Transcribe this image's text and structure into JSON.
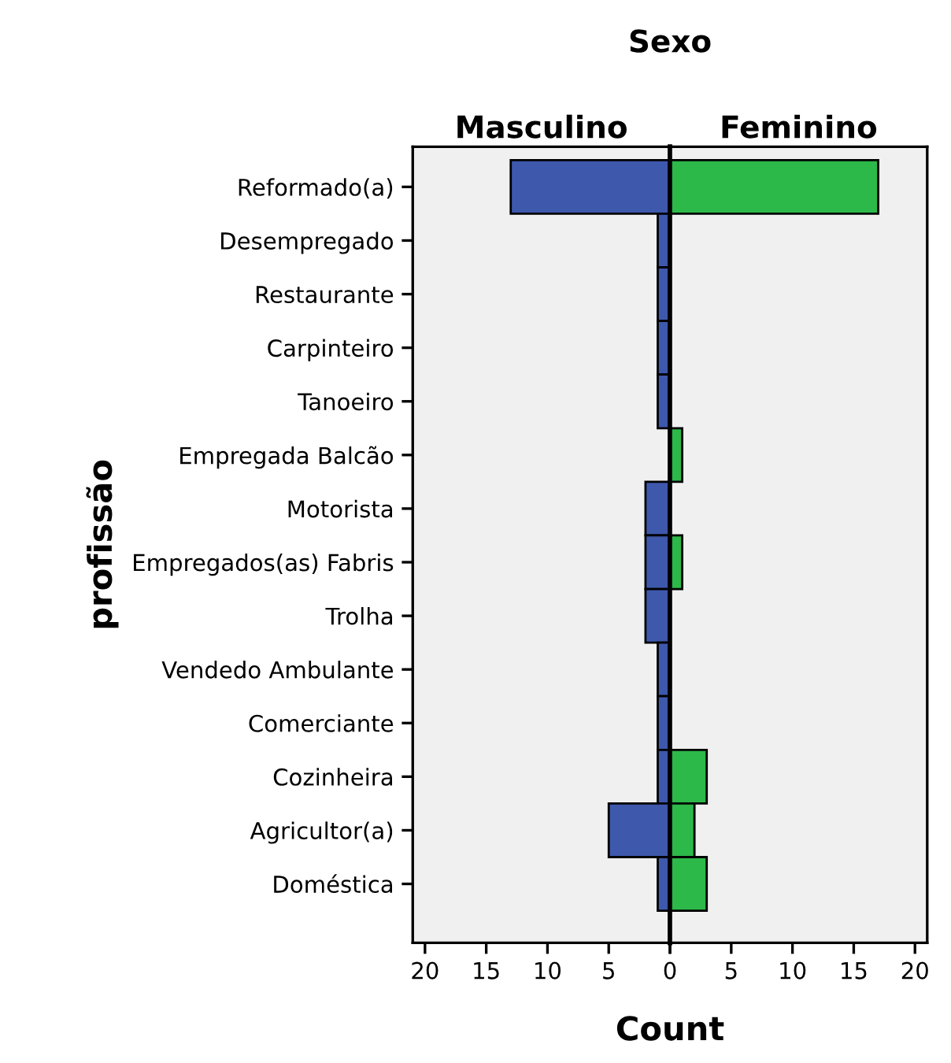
{
  "chart_data": [
    {
      "type": "bar",
      "orientation": "horizontal",
      "title": "Masculino",
      "annotations": [
        "Sexo"
      ],
      "xlabel": "Count",
      "ylabel": "profissão",
      "categories": [
        "Reformado(a)",
        "Desempregado",
        "Restaurante",
        "Carpinteiro",
        "Tanoeiro",
        "Empregada Balcão",
        "Motorista",
        "Empregados(as) Fabris",
        "Trolha",
        "Vendedo Ambulante",
        "Comerciante",
        "Cozinheira",
        "Agricultor(a)",
        "Doméstica"
      ],
      "series": [
        {
          "color": "#3e58ac",
          "values": [
            13,
            1,
            1,
            1,
            1,
            null,
            2,
            2,
            2,
            1,
            1,
            1,
            5,
            1
          ]
        }
      ],
      "xlim": [
        21,
        0
      ],
      "xticks": [
        0,
        5,
        10,
        15,
        20
      ],
      "grid": false,
      "legend": false
    },
    {
      "type": "bar",
      "orientation": "horizontal",
      "title": "Feminino",
      "categories": [
        null,
        null,
        null,
        null,
        null,
        null,
        null,
        null,
        null,
        null,
        null,
        null,
        null,
        null
      ],
      "series": [
        {
          "color": "#2db84a",
          "values": [
            17,
            null,
            null,
            null,
            null,
            1,
            null,
            1,
            null,
            null,
            null,
            3,
            2,
            3
          ]
        }
      ],
      "xlim": [
        0,
        21
      ],
      "xticks": [
        {
          "value": 0,
          "label": null
        },
        5,
        10,
        15,
        20
      ],
      "tick_labels": "x",
      "grid": false,
      "legend": false
    }
  ]
}
